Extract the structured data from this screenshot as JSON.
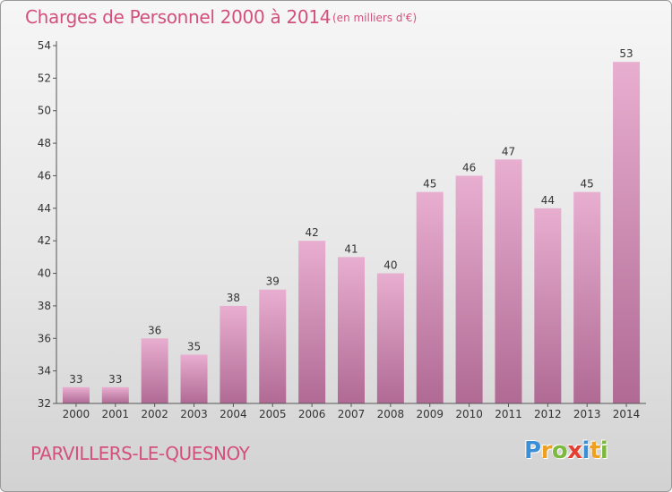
{
  "title": "Charges de Personnel 2000 à 2014",
  "unit_note": "(en milliers d'€)",
  "commune": "PARVILLERS-LE-QUESNOY",
  "brand": {
    "letters": [
      "P",
      "r",
      "o",
      "x",
      "i",
      "t",
      "i"
    ],
    "colors": [
      "#3a8fd6",
      "#f0a020",
      "#7cb93e",
      "#e53d2f",
      "#3a8fd6",
      "#f0a020",
      "#7cb93e"
    ]
  },
  "colors": {
    "bar_top": "#e8aed0",
    "bar_bottom": "#b06a94",
    "text_accent": "#d4507c"
  },
  "chart_data": {
    "type": "bar",
    "categories": [
      "2000",
      "2001",
      "2002",
      "2003",
      "2004",
      "2005",
      "2006",
      "2007",
      "2008",
      "2009",
      "2010",
      "2011",
      "2012",
      "2013",
      "2014"
    ],
    "values": [
      33,
      33,
      36,
      35,
      38,
      39,
      42,
      41,
      40,
      45,
      46,
      47,
      44,
      45,
      53
    ],
    "title": "Charges de Personnel 2000 à 2014",
    "xlabel": "",
    "ylabel": "",
    "ylim": [
      32,
      54
    ],
    "yticks": [
      32,
      34,
      36,
      38,
      40,
      42,
      44,
      46,
      48,
      50,
      52,
      54
    ],
    "grid": false,
    "data_labels": true
  }
}
